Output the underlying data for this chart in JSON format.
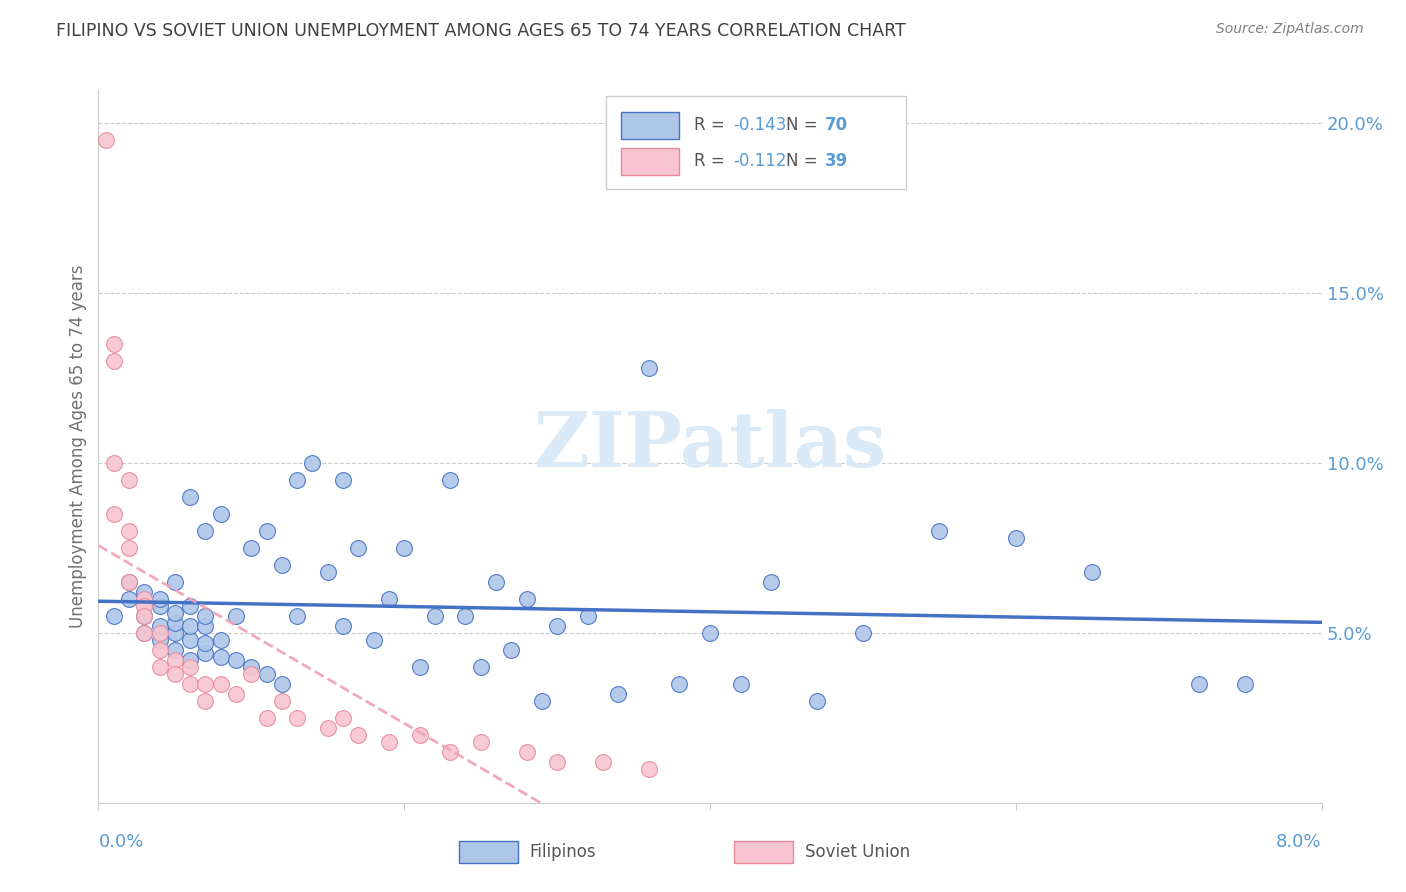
{
  "title": "FILIPINO VS SOVIET UNION UNEMPLOYMENT AMONG AGES 65 TO 74 YEARS CORRELATION CHART",
  "source": "Source: ZipAtlas.com",
  "ylabel": "Unemployment Among Ages 65 to 74 years",
  "xmin": 0.0,
  "xmax": 0.08,
  "ymin": 0.0,
  "ymax": 0.21,
  "yticks": [
    0.05,
    0.1,
    0.15,
    0.2
  ],
  "ytick_labels": [
    "5.0%",
    "10.0%",
    "15.0%",
    "20.0%"
  ],
  "legend_filipino_R": "-0.143",
  "legend_filipino_N": "70",
  "legend_soviet_R": "-0.112",
  "legend_soviet_N": "39",
  "filipino_face_color": "#aec6e8",
  "filipino_edge_color": "#4472c4",
  "soviet_face_color": "#f7c5d0",
  "soviet_edge_color": "#e8899a",
  "filipino_line_color": "#4472c4",
  "soviet_line_color": "#f0a0b5",
  "axis_label_color": "#5b9bd5",
  "title_color": "#404040",
  "source_color": "#808080",
  "grid_color": "#cccccc",
  "watermark_color": "#daeaf7",
  "watermark": "ZIPatlas",
  "filipino_x": [
    0.001,
    0.002,
    0.002,
    0.003,
    0.003,
    0.003,
    0.004,
    0.004,
    0.004,
    0.004,
    0.005,
    0.005,
    0.005,
    0.005,
    0.005,
    0.006,
    0.006,
    0.006,
    0.006,
    0.006,
    0.007,
    0.007,
    0.007,
    0.007,
    0.007,
    0.008,
    0.008,
    0.008,
    0.009,
    0.009,
    0.01,
    0.01,
    0.011,
    0.011,
    0.012,
    0.012,
    0.013,
    0.013,
    0.014,
    0.015,
    0.016,
    0.016,
    0.017,
    0.018,
    0.019,
    0.02,
    0.021,
    0.022,
    0.023,
    0.024,
    0.025,
    0.026,
    0.027,
    0.028,
    0.029,
    0.03,
    0.032,
    0.034,
    0.036,
    0.038,
    0.04,
    0.042,
    0.044,
    0.047,
    0.05,
    0.055,
    0.06,
    0.065,
    0.072,
    0.075
  ],
  "filipino_y": [
    0.055,
    0.06,
    0.065,
    0.05,
    0.055,
    0.062,
    0.048,
    0.052,
    0.058,
    0.06,
    0.045,
    0.05,
    0.053,
    0.056,
    0.065,
    0.042,
    0.048,
    0.052,
    0.058,
    0.09,
    0.044,
    0.047,
    0.052,
    0.055,
    0.08,
    0.043,
    0.048,
    0.085,
    0.042,
    0.055,
    0.04,
    0.075,
    0.038,
    0.08,
    0.035,
    0.07,
    0.055,
    0.095,
    0.1,
    0.068,
    0.052,
    0.095,
    0.075,
    0.048,
    0.06,
    0.075,
    0.04,
    0.055,
    0.095,
    0.055,
    0.04,
    0.065,
    0.045,
    0.06,
    0.03,
    0.052,
    0.055,
    0.032,
    0.128,
    0.035,
    0.05,
    0.035,
    0.065,
    0.03,
    0.05,
    0.08,
    0.078,
    0.068,
    0.035,
    0.035
  ],
  "soviet_x": [
    0.0005,
    0.001,
    0.001,
    0.001,
    0.001,
    0.002,
    0.002,
    0.002,
    0.002,
    0.003,
    0.003,
    0.003,
    0.003,
    0.004,
    0.004,
    0.004,
    0.005,
    0.005,
    0.006,
    0.006,
    0.007,
    0.007,
    0.008,
    0.009,
    0.01,
    0.011,
    0.012,
    0.013,
    0.015,
    0.016,
    0.017,
    0.019,
    0.021,
    0.023,
    0.025,
    0.028,
    0.03,
    0.033,
    0.036
  ],
  "soviet_y": [
    0.195,
    0.13,
    0.135,
    0.1,
    0.085,
    0.095,
    0.08,
    0.075,
    0.065,
    0.06,
    0.058,
    0.055,
    0.05,
    0.05,
    0.045,
    0.04,
    0.042,
    0.038,
    0.04,
    0.035,
    0.035,
    0.03,
    0.035,
    0.032,
    0.038,
    0.025,
    0.03,
    0.025,
    0.022,
    0.025,
    0.02,
    0.018,
    0.02,
    0.015,
    0.018,
    0.015,
    0.012,
    0.012,
    0.01
  ]
}
